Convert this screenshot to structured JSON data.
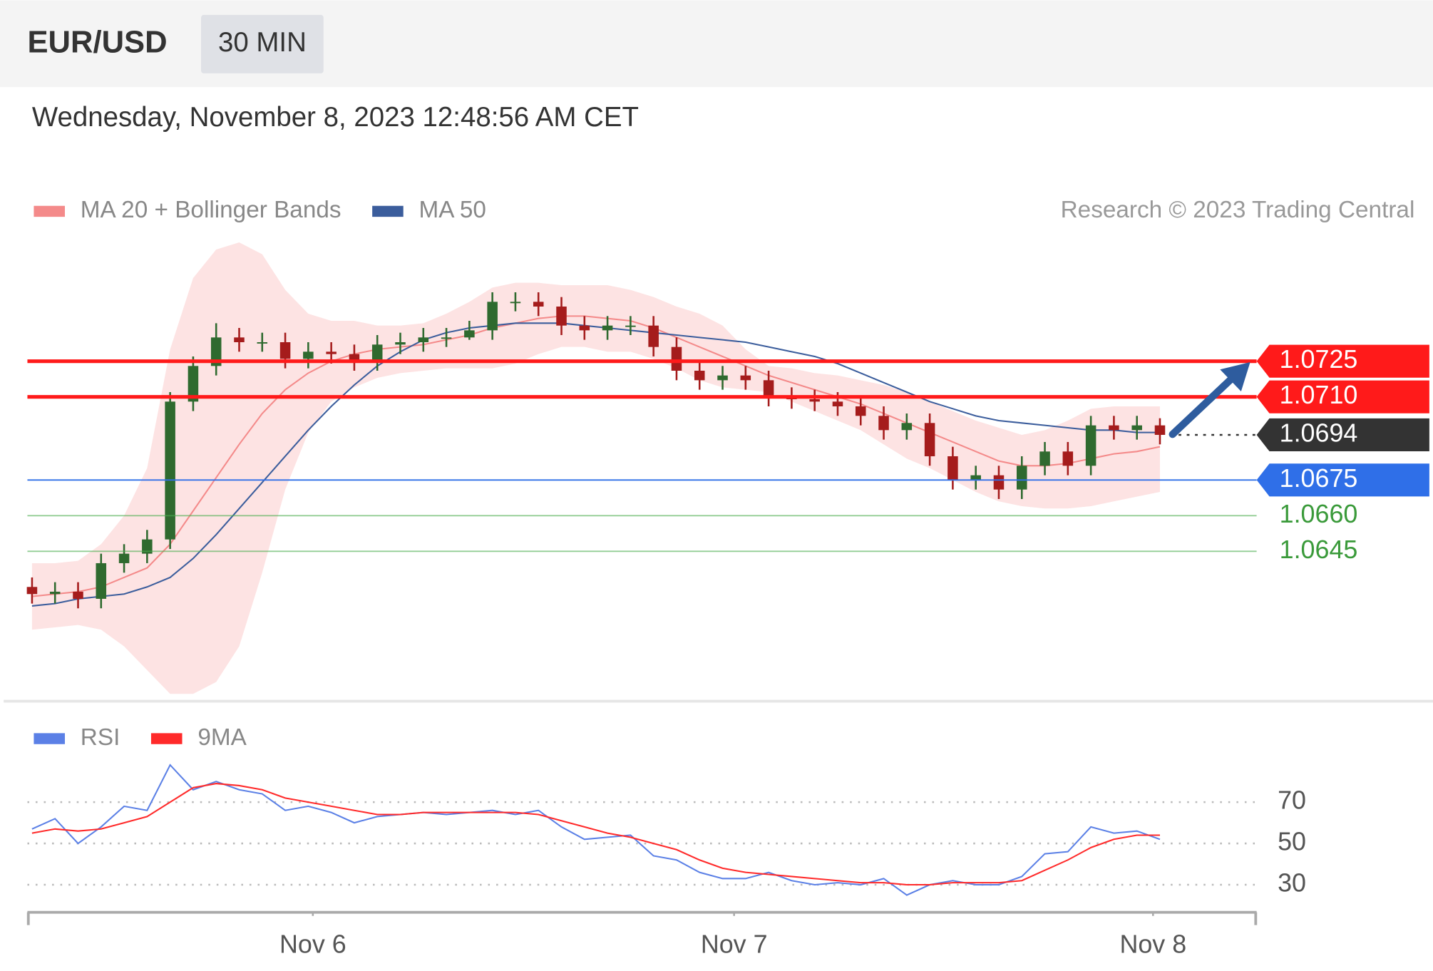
{
  "header": {
    "pair": "EUR/USD",
    "timeframe": "30 MIN",
    "date": "Wednesday, November 8, 2023 12:48:56 AM CET"
  },
  "chart_data": [
    {
      "type": "candlestick",
      "credit": "Research © 2023 Trading Central",
      "xlim": [
        -0.2,
        53.2
      ],
      "ylim": [
        1.0585,
        1.0775
      ],
      "up_color": "#2f6a2f",
      "down_color": "#a51c1c",
      "open": [
        1.063,
        1.0627,
        1.0628,
        1.0625,
        1.064,
        1.0644,
        1.065,
        1.0708,
        1.0723,
        1.0735,
        1.0733,
        1.0733,
        1.0726,
        1.0729,
        1.0728,
        1.0725,
        1.0732,
        1.0733,
        1.0735,
        1.0735,
        1.0738,
        1.075,
        1.075,
        1.0748,
        1.074,
        1.0738,
        1.074,
        1.074,
        1.0731,
        1.0721,
        1.0717,
        1.0719,
        1.0717,
        1.071,
        1.0709,
        1.0708,
        1.0706,
        1.0702,
        1.0696,
        1.0699,
        1.0685,
        1.0675,
        1.0677,
        1.0671,
        1.0681,
        1.0687,
        1.0681,
        1.0698,
        1.0696,
        1.0698
      ],
      "high": [
        1.0634,
        1.0632,
        1.0632,
        1.0644,
        1.0648,
        1.0654,
        1.0712,
        1.0727,
        1.0741,
        1.0739,
        1.0737,
        1.0737,
        1.0733,
        1.0733,
        1.0732,
        1.0736,
        1.0737,
        1.0739,
        1.0739,
        1.0742,
        1.0754,
        1.0754,
        1.0754,
        1.0752,
        1.0744,
        1.0744,
        1.0744,
        1.0744,
        1.0735,
        1.0725,
        1.0723,
        1.0723,
        1.0721,
        1.0714,
        1.0713,
        1.0712,
        1.071,
        1.0706,
        1.0703,
        1.0703,
        1.0689,
        1.0681,
        1.0681,
        1.0685,
        1.0691,
        1.0691,
        1.0702,
        1.0702,
        1.0702,
        1.0701
      ],
      "low": [
        1.0623,
        1.0623,
        1.0621,
        1.0621,
        1.0636,
        1.064,
        1.0646,
        1.0704,
        1.0719,
        1.0729,
        1.0729,
        1.0722,
        1.0722,
        1.0724,
        1.0721,
        1.0721,
        1.0728,
        1.0729,
        1.0731,
        1.0734,
        1.0734,
        1.0746,
        1.0744,
        1.0736,
        1.0734,
        1.0734,
        1.0736,
        1.0727,
        1.0717,
        1.0713,
        1.0713,
        1.0713,
        1.0706,
        1.0705,
        1.0704,
        1.0702,
        1.0698,
        1.0692,
        1.0692,
        1.0681,
        1.0671,
        1.0671,
        1.0667,
        1.0667,
        1.0677,
        1.0677,
        1.0677,
        1.0692,
        1.0692,
        1.069
      ],
      "close": [
        1.0627,
        1.0628,
        1.0625,
        1.064,
        1.0644,
        1.065,
        1.0708,
        1.0723,
        1.0735,
        1.0733,
        1.0733,
        1.0726,
        1.0729,
        1.0728,
        1.0725,
        1.0732,
        1.0733,
        1.0735,
        1.0735,
        1.0738,
        1.075,
        1.075,
        1.0748,
        1.074,
        1.0738,
        1.074,
        1.074,
        1.0731,
        1.0721,
        1.0717,
        1.0719,
        1.0717,
        1.071,
        1.0709,
        1.0708,
        1.0706,
        1.0702,
        1.0696,
        1.0699,
        1.0685,
        1.0675,
        1.0677,
        1.0671,
        1.0681,
        1.0687,
        1.0681,
        1.0698,
        1.0696,
        1.0698,
        1.0694
      ],
      "series": [
        {
          "name": "MA 20 + Bollinger Bands",
          "color": "#f48a8a",
          "band_color": "#fde3e3",
          "values": [
            1.0626,
            1.0627,
            1.0628,
            1.063,
            1.0634,
            1.0638,
            1.0648,
            1.0662,
            1.0676,
            1.069,
            1.0703,
            1.0713,
            1.072,
            1.0725,
            1.0728,
            1.073,
            1.0731,
            1.0732,
            1.0734,
            1.0736,
            1.0739,
            1.0741,
            1.0743,
            1.0744,
            1.0744,
            1.0743,
            1.0742,
            1.0739,
            1.0735,
            1.0731,
            1.0727,
            1.0723,
            1.0719,
            1.0716,
            1.0713,
            1.071,
            1.0707,
            1.0703,
            1.0699,
            1.0695,
            1.0691,
            1.0687,
            1.0683,
            1.0681,
            1.0681,
            1.0682,
            1.0684,
            1.0686,
            1.0687,
            1.0689
          ],
          "upper": [
            1.064,
            1.064,
            1.0641,
            1.0648,
            1.066,
            1.068,
            1.073,
            1.076,
            1.0772,
            1.0775,
            1.077,
            1.0755,
            1.0745,
            1.0742,
            1.0742,
            1.074,
            1.074,
            1.0741,
            1.0745,
            1.075,
            1.0756,
            1.0758,
            1.0758,
            1.0757,
            1.0757,
            1.0757,
            1.0755,
            1.0752,
            1.0748,
            1.0745,
            1.074,
            1.073,
            1.0723,
            1.0722,
            1.072,
            1.0719,
            1.0717,
            1.0715,
            1.0712,
            1.0708,
            1.0704,
            1.07,
            1.0697,
            1.0694,
            1.0696,
            1.07,
            1.0705,
            1.0706,
            1.0706,
            1.0706
          ],
          "lower": [
            1.0612,
            1.0613,
            1.0614,
            1.0612,
            1.0605,
            1.0595,
            1.0585,
            1.0585,
            1.059,
            1.0605,
            1.0636,
            1.0671,
            1.0695,
            1.0708,
            1.0714,
            1.0718,
            1.072,
            1.0721,
            1.0722,
            1.0722,
            1.0722,
            1.0724,
            1.0728,
            1.0731,
            1.0731,
            1.0729,
            1.0729,
            1.0726,
            1.0722,
            1.0717,
            1.0714,
            1.0713,
            1.0712,
            1.0708,
            1.0704,
            1.07,
            1.0696,
            1.069,
            1.0684,
            1.068,
            1.0675,
            1.067,
            1.0666,
            1.0664,
            1.0663,
            1.0663,
            1.0664,
            1.0666,
            1.0668,
            1.067
          ]
        },
        {
          "name": "MA 50",
          "color": "#3b5d9c",
          "values": [
            1.0622,
            1.0623,
            1.0625,
            1.0626,
            1.0627,
            1.063,
            1.0634,
            1.0642,
            1.0652,
            1.0663,
            1.0674,
            1.0685,
            1.0696,
            1.0706,
            1.0715,
            1.0723,
            1.0729,
            1.0734,
            1.0737,
            1.0739,
            1.074,
            1.0741,
            1.0741,
            1.0741,
            1.074,
            1.0739,
            1.0738,
            1.0737,
            1.0736,
            1.0735,
            1.0734,
            1.0733,
            1.0731,
            1.0729,
            1.0727,
            1.0724,
            1.072,
            1.0716,
            1.0712,
            1.0708,
            1.0705,
            1.0702,
            1.07,
            1.0699,
            1.0698,
            1.0697,
            1.0696,
            1.0696,
            1.0695,
            1.0695
          ]
        }
      ],
      "levels": [
        {
          "value": 1.0725,
          "label": "1.0725",
          "color": "#ff1a1a",
          "line": "thick",
          "marker": "box"
        },
        {
          "value": 1.071,
          "label": "1.0710",
          "color": "#ff1a1a",
          "line": "thick",
          "marker": "box"
        },
        {
          "value": 1.0694,
          "label": "1.0694",
          "color": "#333333",
          "line": "dotted",
          "marker": "box"
        },
        {
          "value": 1.0675,
          "label": "1.0675",
          "color": "#2f6fe8",
          "line": "thin",
          "marker": "box"
        },
        {
          "value": 1.066,
          "label": "1.0660",
          "color": "#4caf50",
          "line": "thin",
          "marker": "text"
        },
        {
          "value": 1.0645,
          "label": "1.0645",
          "color": "#4caf50",
          "line": "thin",
          "marker": "text"
        }
      ]
    },
    {
      "type": "line",
      "xlim": [
        -0.2,
        53.2
      ],
      "ylim": [
        18,
        91
      ],
      "yticks": [
        30,
        50,
        70
      ],
      "grid": true,
      "xticks": [
        {
          "value": 12.2,
          "label": "Nov 6"
        },
        {
          "value": 30.5,
          "label": "Nov 7"
        },
        {
          "value": 48.7,
          "label": "Nov 8"
        }
      ],
      "series": [
        {
          "name": "RSI",
          "color": "#5b80e6",
          "values": [
            57,
            62,
            50,
            58,
            68,
            66,
            88,
            76,
            80,
            76,
            74,
            66,
            68,
            65,
            60,
            63,
            64,
            65,
            64,
            65,
            66,
            64,
            66,
            58,
            52,
            53,
            54,
            44,
            42,
            36,
            33,
            33,
            36,
            32,
            30,
            31,
            30,
            33,
            25,
            30,
            32,
            30,
            30,
            34,
            45,
            46,
            58,
            55,
            56,
            52
          ]
        },
        {
          "name": "9MA",
          "color": "#ff2a2a",
          "values": [
            55,
            57,
            56,
            57,
            60,
            63,
            70,
            77,
            79,
            78,
            76,
            72,
            70,
            68,
            66,
            64,
            64,
            65,
            65,
            65,
            65,
            65,
            64,
            61,
            58,
            55,
            53,
            50,
            47,
            42,
            38,
            36,
            35,
            34,
            33,
            32,
            31,
            31,
            30,
            30,
            31,
            31,
            31,
            32,
            37,
            42,
            48,
            52,
            54,
            54
          ]
        }
      ]
    }
  ]
}
